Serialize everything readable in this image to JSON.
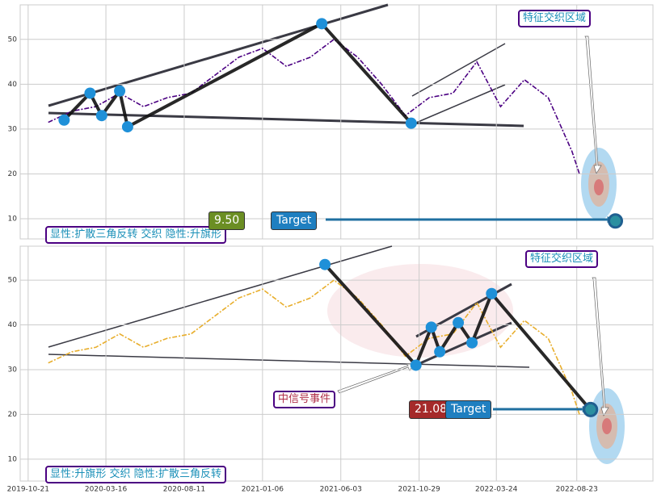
{
  "chart_data": [
    {
      "type": "line",
      "color": "#4b0082",
      "dash": "6,2,2,2",
      "x": [
        "2019-11-28",
        "2020-01-12",
        "2020-02-26",
        "2020-04-11",
        "2020-05-26",
        "2020-07-10",
        "2020-08-24",
        "2020-10-08",
        "2020-11-22",
        "2021-01-06",
        "2021-02-20",
        "2021-04-06",
        "2021-05-21",
        "2021-07-05",
        "2021-08-19",
        "2021-10-03",
        "2021-11-17",
        "2022-01-01",
        "2022-02-15",
        "2022-04-01",
        "2022-05-16",
        "2022-06-30",
        "2022-08-14",
        "2022-08-28"
      ],
      "values": [
        31.5,
        34,
        35,
        38,
        35,
        37,
        38,
        42,
        46,
        48,
        44,
        46,
        50,
        46,
        40,
        33,
        37,
        38,
        45,
        35,
        41,
        37,
        25,
        20
      ],
      "xlim": [
        "2019-10-06",
        "2023-01-14"
      ],
      "xticks": [
        "2019-10-21",
        "2020-03-16",
        "2020-08-11",
        "2021-01-06",
        "2021-06-03",
        "2021-10-29",
        "2022-03-24",
        "2022-08-23"
      ],
      "show_xtick_labels": false,
      "ylim": [
        5.5,
        57.7
      ],
      "yticks": [
        10,
        20,
        30,
        40,
        50
      ],
      "grid": true,
      "pivots": {
        "x": [
          "2019-12-28",
          "2020-02-15",
          "2020-03-08",
          "2020-04-11",
          "2020-04-26",
          "2021-04-28",
          "2021-10-14"
        ],
        "values": [
          32,
          38,
          33,
          38.5,
          30.5,
          53.5,
          31.3
        ]
      },
      "target": {
        "label": "Target",
        "value": 9.5,
        "value_label": "9.50",
        "x": "2022-11-04",
        "value_color": "#6b8e23"
      },
      "zone_label": "特征交织区域",
      "pattern_label": "显性:扩散三角反转 交织 隐性:升旗形"
    },
    {
      "type": "line",
      "color": "#e8ae2c",
      "dash": "6,2,2,2",
      "x": [
        "2019-11-28",
        "2020-01-12",
        "2020-02-26",
        "2020-04-11",
        "2020-05-26",
        "2020-07-10",
        "2020-08-24",
        "2020-10-08",
        "2020-11-22",
        "2021-01-06",
        "2021-02-20",
        "2021-04-06",
        "2021-05-21",
        "2021-07-05",
        "2021-08-19",
        "2021-10-03",
        "2021-11-17",
        "2022-01-01",
        "2022-02-15",
        "2022-04-01",
        "2022-05-16",
        "2022-06-30",
        "2022-08-14",
        "2022-08-28"
      ],
      "values": [
        31.5,
        34,
        35,
        38,
        35,
        37,
        38,
        42,
        46,
        48,
        44,
        46,
        50,
        46,
        40,
        33,
        37,
        38,
        45,
        35,
        41,
        37,
        25,
        20
      ],
      "xlim": [
        "2019-10-06",
        "2023-01-14"
      ],
      "xticks": [
        "2019-10-21",
        "2020-03-16",
        "2020-08-11",
        "2021-01-06",
        "2021-06-03",
        "2021-10-29",
        "2022-03-24",
        "2022-08-23"
      ],
      "show_xtick_labels": true,
      "ylim": [
        5.1,
        57.6
      ],
      "yticks": [
        10,
        20,
        30,
        40,
        50
      ],
      "grid": true,
      "pivots": {
        "x": [
          "2021-05-04",
          "2021-10-23",
          "2021-11-21",
          "2021-12-07",
          "2022-01-11",
          "2022-02-06",
          "2022-03-15",
          "2022-09-18"
        ],
        "values": [
          53.5,
          31,
          39.5,
          34,
          40.5,
          36,
          47,
          21
        ]
      },
      "target": {
        "label": "Target",
        "value": 21.08,
        "value_label": "21.08",
        "x": "2022-09-18",
        "value_color": "#a52a2a"
      },
      "zone_label": "特征交织区域",
      "event_label": "中信号事件",
      "pattern_label": "显性:升旗形 交织 隐性:扩散三角反转"
    }
  ]
}
